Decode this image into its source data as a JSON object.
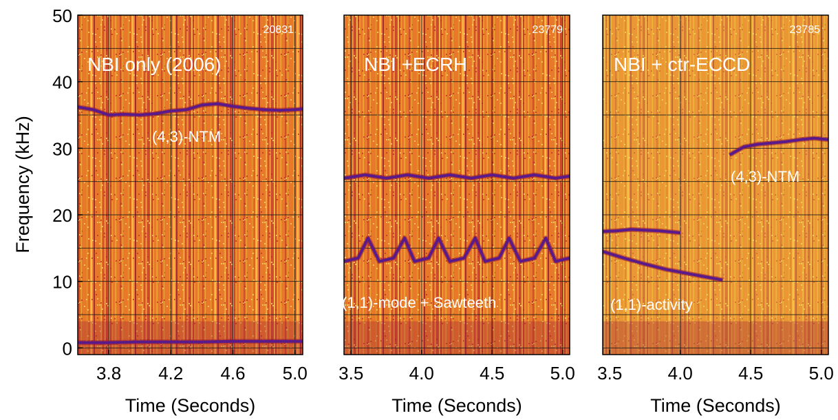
{
  "figure": {
    "ylabel": "Frequency (kHz)",
    "colors": {
      "background": "#ffffff",
      "spectrogram_base": "#e8782a",
      "spectrogram_hot": "#f2d24a",
      "mode_trace": "#5a1a8a",
      "annotation_text": "#ffffff",
      "grid": "#1a1a1a"
    }
  },
  "chart_data": [
    {
      "type": "heatmap",
      "id": "panel-20831",
      "shot_number": "20831",
      "title": "NBI only (2006)",
      "xlabel": "Time (Seconds)",
      "ylabel": "Frequency (kHz)",
      "xlim": [
        3.6,
        5.05
      ],
      "ylim": [
        -1,
        50
      ],
      "x_ticks": [
        {
          "value": 3.8,
          "label": "3.8"
        },
        {
          "value": 4.2,
          "label": "4.2"
        },
        {
          "value": 4.6,
          "label": "4.6"
        },
        {
          "value": 5.0,
          "label": "5.0"
        }
      ],
      "y_ticks": [
        {
          "value": 0,
          "label": "0"
        },
        {
          "value": 10,
          "label": "10"
        },
        {
          "value": 20,
          "label": "20"
        },
        {
          "value": 30,
          "label": "30"
        },
        {
          "value": 40,
          "label": "40"
        },
        {
          "value": 50,
          "label": "50"
        }
      ],
      "grid": true,
      "annotations": [
        {
          "text": "(4,3)-NTM",
          "x": 4.15,
          "y": 32.5
        }
      ],
      "mode_traces": [
        {
          "name": "(4,3)-NTM",
          "x": [
            3.6,
            3.7,
            3.8,
            3.9,
            4.0,
            4.1,
            4.2,
            4.3,
            4.4,
            4.5,
            4.6,
            4.7,
            4.8,
            4.9,
            5.0,
            5.05
          ],
          "y": [
            36.2,
            35.8,
            35.0,
            35.1,
            35.0,
            35.2,
            35.6,
            35.8,
            36.5,
            36.7,
            36.3,
            36.0,
            35.8,
            35.7,
            35.8,
            35.9
          ]
        },
        {
          "name": "",
          "x": [
            3.6,
            3.8,
            4.0,
            4.2,
            4.4,
            4.6,
            4.8,
            5.05
          ],
          "y": [
            0.8,
            0.8,
            0.9,
            0.9,
            0.9,
            1.0,
            1.0,
            1.0
          ]
        }
      ]
    },
    {
      "type": "heatmap",
      "id": "panel-23779",
      "shot_number": "23779",
      "title": "NBI +ECRH",
      "xlabel": "Time (Seconds)",
      "ylabel": "Frequency (kHz)",
      "xlim": [
        3.45,
        5.05
      ],
      "ylim": [
        -1,
        50
      ],
      "x_ticks": [
        {
          "value": 3.5,
          "label": "3.5"
        },
        {
          "value": 4.0,
          "label": "4.0"
        },
        {
          "value": 4.5,
          "label": "4.5"
        },
        {
          "value": 5.0,
          "label": "5.0"
        }
      ],
      "grid": true,
      "annotations": [
        {
          "text": "(1,1)-mode + Sawteeth",
          "x": 4.0,
          "y": 7.5
        }
      ],
      "mode_traces": [
        {
          "name": "(1,1)-mode",
          "x": [
            3.45,
            3.55,
            3.62,
            3.7,
            3.8,
            3.88,
            3.95,
            4.05,
            4.12,
            4.2,
            4.3,
            4.38,
            4.45,
            4.55,
            4.62,
            4.7,
            4.8,
            4.88,
            4.95,
            5.05
          ],
          "y": [
            13.0,
            13.5,
            16.5,
            13.0,
            13.5,
            16.5,
            13.0,
            13.5,
            16.5,
            13.0,
            13.5,
            16.5,
            13.0,
            13.5,
            16.5,
            13.0,
            13.5,
            16.5,
            13.0,
            13.5
          ]
        },
        {
          "name": "",
          "x": [
            3.45,
            3.6,
            3.75,
            3.9,
            4.05,
            4.2,
            4.35,
            4.5,
            4.65,
            4.8,
            4.95,
            5.05
          ],
          "y": [
            25.5,
            26.0,
            25.5,
            26.0,
            25.5,
            26.0,
            25.5,
            26.0,
            25.5,
            26.0,
            25.5,
            25.8
          ]
        }
      ]
    },
    {
      "type": "heatmap",
      "id": "panel-23785",
      "shot_number": "23785",
      "title": "NBI + ctr-ECCD",
      "xlabel": "Time (Seconds)",
      "ylabel": "Frequency (kHz)",
      "xlim": [
        3.45,
        5.05
      ],
      "ylim": [
        -1,
        50
      ],
      "x_ticks": [
        {
          "value": 3.5,
          "label": "3.5"
        },
        {
          "value": 4.0,
          "label": "4.0"
        },
        {
          "value": 4.5,
          "label": "4.5"
        },
        {
          "value": 5.0,
          "label": "5.0"
        }
      ],
      "grid": true,
      "annotations": [
        {
          "text": "(4,3)-NTM",
          "x": 4.75,
          "y": 25.5
        },
        {
          "text": "(1,1)-activity",
          "x": 3.75,
          "y": 7.5
        }
      ],
      "mode_traces": [
        {
          "name": "(4,3)-NTM",
          "x": [
            4.35,
            4.45,
            4.55,
            4.65,
            4.75,
            4.85,
            4.95,
            5.05
          ],
          "y": [
            29.0,
            30.2,
            30.6,
            30.8,
            31.0,
            31.3,
            31.5,
            31.3
          ]
        },
        {
          "name": "(1,1)-activity",
          "x": [
            3.45,
            3.55,
            3.65,
            3.75,
            3.85,
            3.95,
            4.0
          ],
          "y": [
            17.5,
            17.6,
            17.8,
            17.7,
            17.6,
            17.4,
            17.3
          ]
        },
        {
          "name": "",
          "x": [
            3.45,
            3.6,
            3.75,
            3.9,
            4.05,
            4.2,
            4.3
          ],
          "y": [
            14.5,
            13.5,
            12.6,
            11.8,
            11.2,
            10.6,
            10.2
          ]
        }
      ]
    }
  ]
}
